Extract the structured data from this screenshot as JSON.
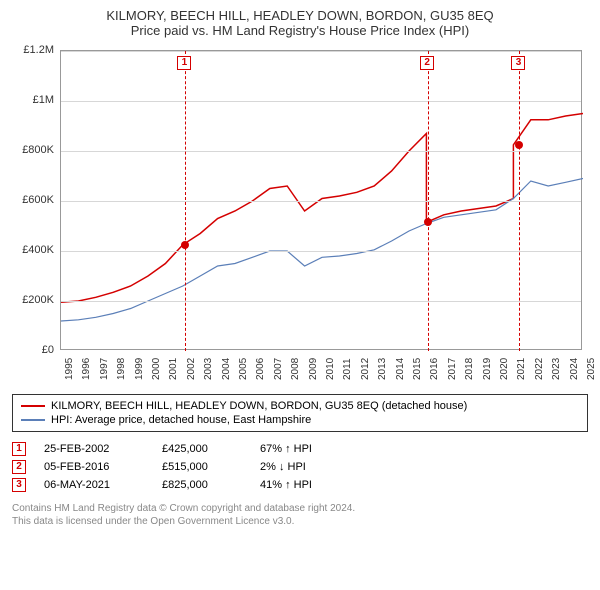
{
  "title_line1": "KILMORY, BEECH HILL, HEADLEY DOWN, BORDON, GU35 8EQ",
  "title_line2": "Price paid vs. HM Land Registry's House Price Index (HPI)",
  "chart": {
    "type": "line",
    "x_years": [
      1995,
      1996,
      1997,
      1998,
      1999,
      2000,
      2001,
      2002,
      2003,
      2004,
      2005,
      2006,
      2007,
      2008,
      2009,
      2010,
      2011,
      2012,
      2013,
      2014,
      2015,
      2016,
      2017,
      2018,
      2019,
      2020,
      2021,
      2022,
      2023,
      2024,
      2025
    ],
    "ylim": [
      0,
      1200000
    ],
    "ytick_step": 200000,
    "y_tick_labels": [
      "£0",
      "£200K",
      "£400K",
      "£600K",
      "£800K",
      "£1M",
      "£1.2M"
    ],
    "background_color": "#ffffff",
    "grid_color": "#d7d7d7",
    "border_color": "#999999",
    "series": [
      {
        "name": "KILMORY, BEECH HILL, HEADLEY DOWN, BORDON, GU35 8EQ (detached house)",
        "color": "#d40000",
        "line_width": 1.5,
        "x": [
          1995,
          1996,
          1997,
          1998,
          1999,
          2000,
          2001,
          2002,
          2003,
          2004,
          2005,
          2006,
          2007,
          2008,
          2009,
          2010,
          2011,
          2012,
          2013,
          2014,
          2015,
          2016,
          2016,
          2017,
          2018,
          2019,
          2020,
          2021,
          2021,
          2022,
          2023,
          2024,
          2025
        ],
        "y": [
          195000,
          200000,
          215000,
          235000,
          260000,
          300000,
          350000,
          425000,
          470000,
          530000,
          560000,
          600000,
          650000,
          660000,
          560000,
          610000,
          620000,
          635000,
          660000,
          720000,
          800000,
          870000,
          515000,
          545000,
          560000,
          570000,
          580000,
          610000,
          825000,
          925000,
          925000,
          940000,
          950000
        ]
      },
      {
        "name": "HPI: Average price, detached house, East Hampshire",
        "color": "#5b7fb8",
        "line_width": 1.2,
        "x": [
          1995,
          1996,
          1997,
          1998,
          1999,
          2000,
          2001,
          2002,
          2003,
          2004,
          2005,
          2006,
          2007,
          2008,
          2009,
          2010,
          2011,
          2012,
          2013,
          2014,
          2015,
          2016,
          2017,
          2018,
          2019,
          2020,
          2021,
          2022,
          2023,
          2024,
          2025
        ],
        "y": [
          120000,
          125000,
          135000,
          150000,
          170000,
          200000,
          230000,
          260000,
          300000,
          340000,
          350000,
          375000,
          400000,
          400000,
          340000,
          375000,
          380000,
          390000,
          405000,
          440000,
          480000,
          510000,
          535000,
          545000,
          555000,
          565000,
          610000,
          680000,
          660000,
          675000,
          690000
        ]
      }
    ],
    "markers": [
      {
        "num": "1",
        "year": 2002.15,
        "price": 425000
      },
      {
        "num": "2",
        "year": 2016.1,
        "price": 515000
      },
      {
        "num": "3",
        "year": 2021.35,
        "price": 825000
      }
    ]
  },
  "legend": {
    "items": [
      {
        "color": "#d40000",
        "label": "KILMORY, BEECH HILL, HEADLEY DOWN, BORDON, GU35 8EQ (detached house)"
      },
      {
        "color": "#5b7fb8",
        "label": "HPI: Average price, detached house, East Hampshire"
      }
    ]
  },
  "events": [
    {
      "num": "1",
      "date": "25-FEB-2002",
      "price": "£425,000",
      "pct": "67% ↑ HPI"
    },
    {
      "num": "2",
      "date": "05-FEB-2016",
      "price": "£515,000",
      "pct": "2% ↓ HPI"
    },
    {
      "num": "3",
      "date": "06-MAY-2021",
      "price": "£825,000",
      "pct": "41% ↑ HPI"
    }
  ],
  "footer_line1": "Contains HM Land Registry data © Crown copyright and database right 2024.",
  "footer_line2": "This data is licensed under the Open Government Licence v3.0."
}
